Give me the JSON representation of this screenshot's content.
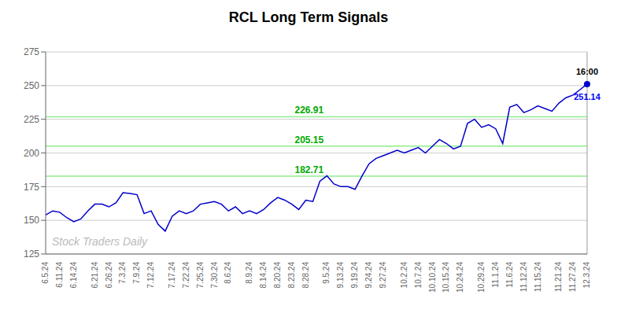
{
  "chart_data": {
    "type": "line",
    "title": "RCL Long Term Signals",
    "categories": [
      "6.5.24",
      null,
      "6.11.24",
      null,
      "6.14.24",
      null,
      null,
      "6.21.24",
      null,
      "6.26.24",
      null,
      "7.3.24",
      null,
      "7.9.24",
      null,
      "7.12.24",
      null,
      null,
      "7.17.24",
      null,
      "7.22.24",
      null,
      "7.25.24",
      null,
      "7.30.24",
      null,
      "8.6.24",
      null,
      null,
      "8.9.24",
      null,
      "8.14.24",
      null,
      "8.20.24",
      null,
      "8.23.24",
      null,
      "8.28.24",
      null,
      null,
      "9.5.24",
      null,
      "9.13.24",
      null,
      "9.19.24",
      null,
      "9.24.24",
      null,
      "9.27.24",
      null,
      null,
      "10.2.24",
      null,
      "10.7.24",
      null,
      "10.10.24",
      null,
      "10.15.24",
      null,
      "10.24.24",
      null,
      null,
      "10.29.24",
      null,
      "11.1.24",
      null,
      "11.6.24",
      null,
      "11.12.24",
      null,
      "11.15.24",
      null,
      null,
      "11.21.24",
      null,
      "11.27.24",
      null,
      "12.3.24"
    ],
    "values": [
      154.0,
      157.0,
      156.0,
      152.0,
      149.0,
      151.0,
      157.0,
      162.0,
      162.0,
      160.0,
      163.0,
      170.5,
      170.0,
      169.0,
      155.0,
      157.0,
      147.0,
      142.0,
      153.0,
      157.0,
      155.0,
      157.0,
      162.0,
      163.0,
      164.0,
      162.0,
      157.0,
      160.0,
      155.0,
      157.0,
      155.0,
      158.0,
      163.0,
      167.0,
      165.0,
      162.0,
      158.0,
      165.0,
      164.0,
      179.0,
      183.0,
      177.0,
      175.0,
      175.0,
      173.0,
      183.0,
      192.0,
      196.0,
      198.0,
      200.0,
      202.0,
      200.0,
      202.0,
      204.0,
      200.0,
      205.0,
      210.0,
      207.0,
      203.0,
      205.0,
      222.0,
      225.0,
      219.0,
      221.0,
      218.0,
      207.0,
      234.0,
      236.0,
      230.0,
      232.0,
      235.0,
      233.0,
      231.0,
      237.0,
      241.0,
      243.0,
      247.0,
      251.14
    ],
    "color": "#0000CC",
    "ylim": [
      125,
      275
    ],
    "yticks": [
      125,
      150,
      175,
      200,
      225,
      250,
      275
    ],
    "grid": true,
    "hlines": [
      {
        "value": 182.71,
        "label": "182.71",
        "color": "#90EE90"
      },
      {
        "value": 205.15,
        "label": "205.15",
        "color": "#90EE90"
      },
      {
        "value": 226.91,
        "label": "226.91",
        "color": "#90EE90"
      }
    ],
    "annotations": [
      {
        "text": "16:00",
        "color": "black"
      },
      {
        "text": "251.14",
        "color": "blue"
      }
    ],
    "watermark": "Stock Traders Daily"
  }
}
